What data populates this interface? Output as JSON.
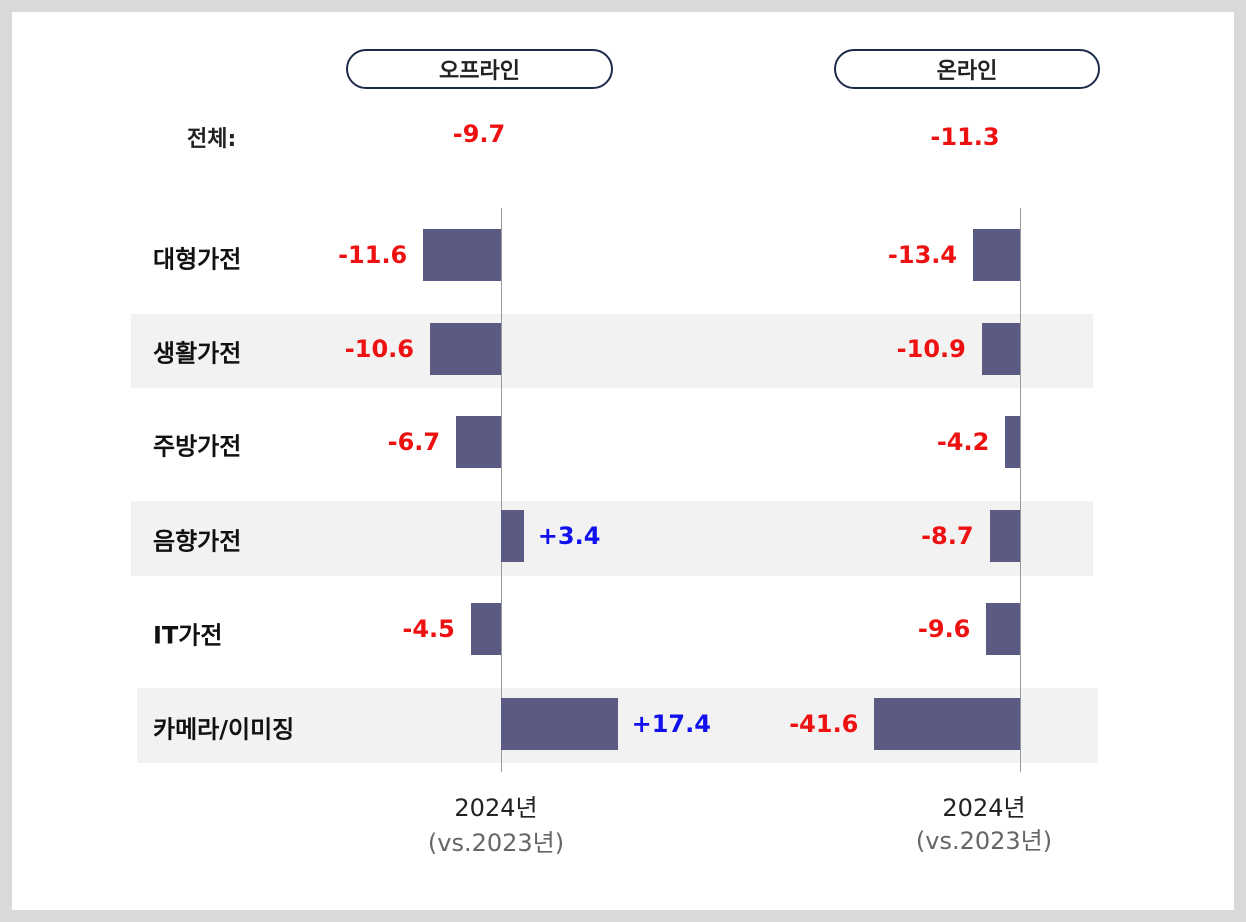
{
  "chart_data": {
    "type": "bar",
    "orientation": "horizontal",
    "total_label": "전체:",
    "categories": [
      "대형가전",
      "생활가전",
      "주방가전",
      "음향가전",
      "IT가전",
      "카메라/이미징"
    ],
    "panels": [
      {
        "title": "오프라인",
        "total": "-9.7",
        "values": [
          -11.6,
          -10.6,
          -6.7,
          3.4,
          -4.5,
          17.4
        ],
        "labels": [
          "-11.6",
          "-10.6",
          "-6.7",
          "+3.4",
          "-4.5",
          "+17.4"
        ],
        "xlabel_line1": "2024년",
        "xlabel_line2": "(vs.2023년)"
      },
      {
        "title": "온라인",
        "total": "-11.3",
        "values": [
          -13.4,
          -10.9,
          -4.2,
          -8.7,
          -9.6,
          -41.6
        ],
        "labels": [
          "-13.4",
          "-10.9",
          "-4.2",
          "-8.7",
          "-9.6",
          "-41.6"
        ],
        "xlabel_line1": "2024년",
        "xlabel_line2": "(vs.2023년)"
      }
    ],
    "colors": {
      "bar": "#5a5a82",
      "negative_label": "#ee1111",
      "positive_label": "#1111ee",
      "band": "#f2f2f2"
    }
  }
}
